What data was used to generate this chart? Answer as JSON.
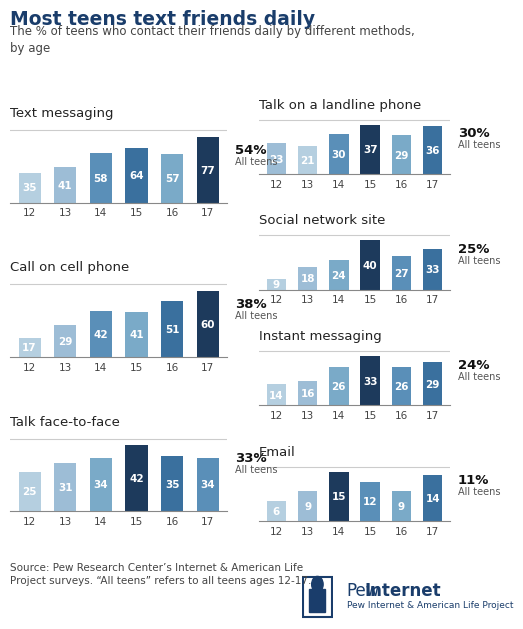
{
  "title": "Most teens text friends daily",
  "subtitle": "The % of teens who contact their friends daily by different methods,\nby age",
  "ages": [
    "12",
    "13",
    "14",
    "15",
    "16",
    "17"
  ],
  "charts": [
    {
      "title": "Text messaging",
      "values": [
        35,
        41,
        58,
        64,
        57,
        77
      ],
      "all_teens": "54%",
      "col": 0,
      "row": 0
    },
    {
      "title": "Call on cell phone",
      "values": [
        17,
        29,
        42,
        41,
        51,
        60
      ],
      "all_teens": "38%",
      "col": 0,
      "row": 1
    },
    {
      "title": "Talk face-to-face",
      "values": [
        25,
        31,
        34,
        42,
        35,
        34
      ],
      "all_teens": "33%",
      "col": 0,
      "row": 2
    },
    {
      "title": "Talk on a landline phone",
      "values": [
        23,
        21,
        30,
        37,
        29,
        36
      ],
      "all_teens": "30%",
      "col": 1,
      "row": 0
    },
    {
      "title": "Social network site",
      "values": [
        9,
        18,
        24,
        40,
        27,
        33
      ],
      "all_teens": "25%",
      "col": 1,
      "row": 1
    },
    {
      "title": "Instant messaging",
      "values": [
        14,
        16,
        26,
        33,
        26,
        29
      ],
      "all_teens": "24%",
      "col": 1,
      "row": 2
    },
    {
      "title": "Email",
      "values": [
        6,
        9,
        15,
        12,
        9,
        14
      ],
      "all_teens": "11%",
      "col": 1,
      "row": 3
    }
  ],
  "bar_palette": [
    "#b5cfe0",
    "#9dbdd6",
    "#7aaac8",
    "#5a8fb8",
    "#3a709e",
    "#1d3a5c"
  ],
  "background_color": "#ffffff",
  "title_color": "#1a3d6b",
  "subtitle_color": "#444444",
  "bar_label_color": "#ffffff",
  "axis_label_color": "#444444",
  "all_teens_pct_color": "#111111",
  "all_teens_text_color": "#555555",
  "chart_title_color": "#222222",
  "source_text": "Source: Pew Research Center’s Internet & American Life\nProject surveys. “All teens” refers to all teens ages 12-17.",
  "pew_logo_text": "Pew Internet",
  "pew_subtext": "Pew Internet & American Life Project",
  "pew_color": "#1a3d6b",
  "separator_color": "#aaaaaa",
  "hline_color": "#cccccc"
}
